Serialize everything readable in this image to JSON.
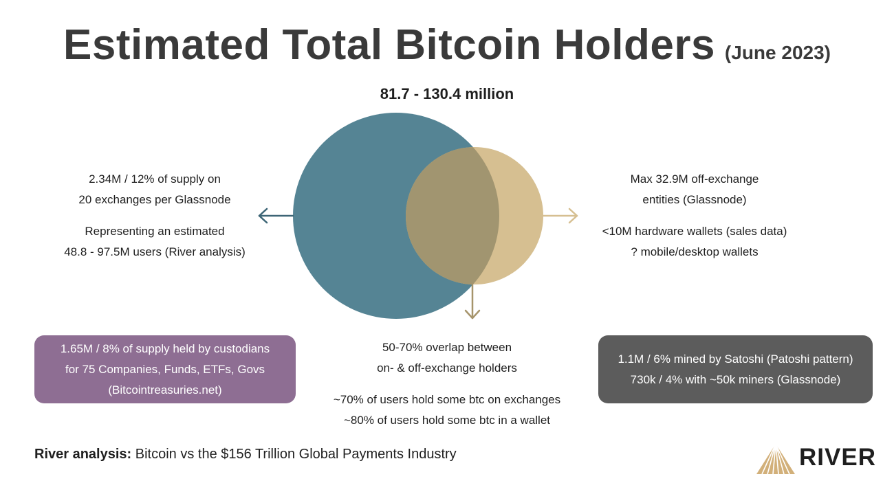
{
  "title": "Estimated Total Bitcoin Holders",
  "title_date": "(June 2023)",
  "total_range": "81.7 - 130.4 million",
  "left_note": {
    "line1": "2.34M / 12% of supply on",
    "line2": "20 exchanges per Glassnode",
    "line3": "Representing an estimated",
    "line4": "48.8 - 97.5M users (River analysis)"
  },
  "right_note": {
    "line1": "Max 32.9M off-exchange",
    "line2": "entities (Glassnode)",
    "line3": "<10M hardware wallets (sales data)",
    "line4": "? mobile/desktop wallets"
  },
  "overlap_note": {
    "line1": "50-70% overlap between",
    "line2": "on- & off-exchange holders",
    "line3": "~70% of users hold some btc on exchanges",
    "line4": "~80% of users hold some btc in a wallet"
  },
  "custodians_box": {
    "line1": "1.65M / 8% of supply held by custodians",
    "line2": "for 75 Companies, Funds, ETFs, Govs",
    "line3": "(Bitcointreasuries.net)",
    "color": "#8e6e93"
  },
  "satoshi_box": {
    "line1": "1.1M / 6% mined by Satoshi (Patoshi pattern)",
    "line2": "730k / 4% with ~50k miners (Glassnode)",
    "color": "#5c5c5c"
  },
  "footer": {
    "bold": "River analysis:",
    "text": " Bitcoin vs the $156 Trillion Global Payments Industry"
  },
  "logo": {
    "text": "RIVER",
    "icon": "river-mountain-logo-icon"
  },
  "colors": {
    "exchange_circle": "#558494",
    "wallet_circle": "#d6bf91",
    "overlap": "#a19570",
    "left_arrow": "#3d6576",
    "right_arrow": "#d6bf91",
    "down_arrow": "#a6946b"
  }
}
